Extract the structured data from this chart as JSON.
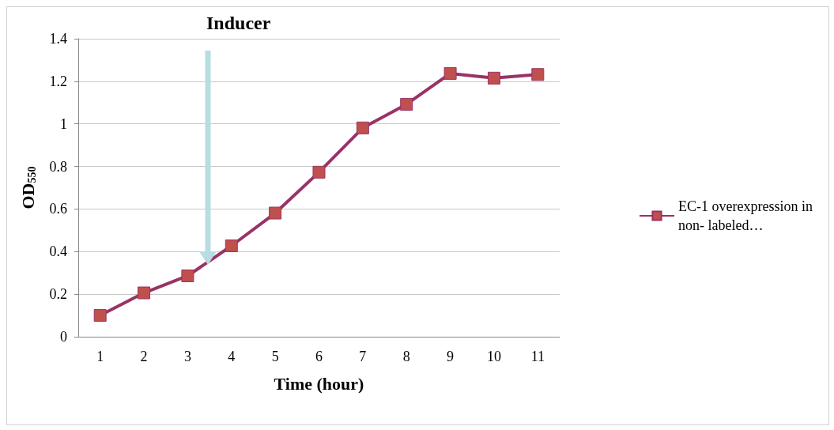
{
  "chart_data": {
    "type": "line",
    "xlabel": "Time (hour)",
    "ylabel": "OD$_{550}$",
    "categories": [
      "1",
      "2",
      "3",
      "4",
      "5",
      "6",
      "7",
      "8",
      "9",
      "10",
      "11"
    ],
    "series": [
      {
        "name": "EC-1 overexpression in non- labeled…",
        "color": "#993366",
        "values": [
          0.1,
          0.206,
          0.286,
          0.427,
          0.581,
          0.773,
          0.981,
          1.092,
          1.237,
          1.215,
          1.232
        ]
      }
    ],
    "ylim": [
      0,
      1.4
    ],
    "yticks": [
      0,
      0.2,
      0.4,
      0.6,
      0.8,
      1,
      1.2,
      1.4
    ],
    "annotations": [
      "Inducer"
    ],
    "grid": "y",
    "legend": "right",
    "marker": "square"
  }
}
